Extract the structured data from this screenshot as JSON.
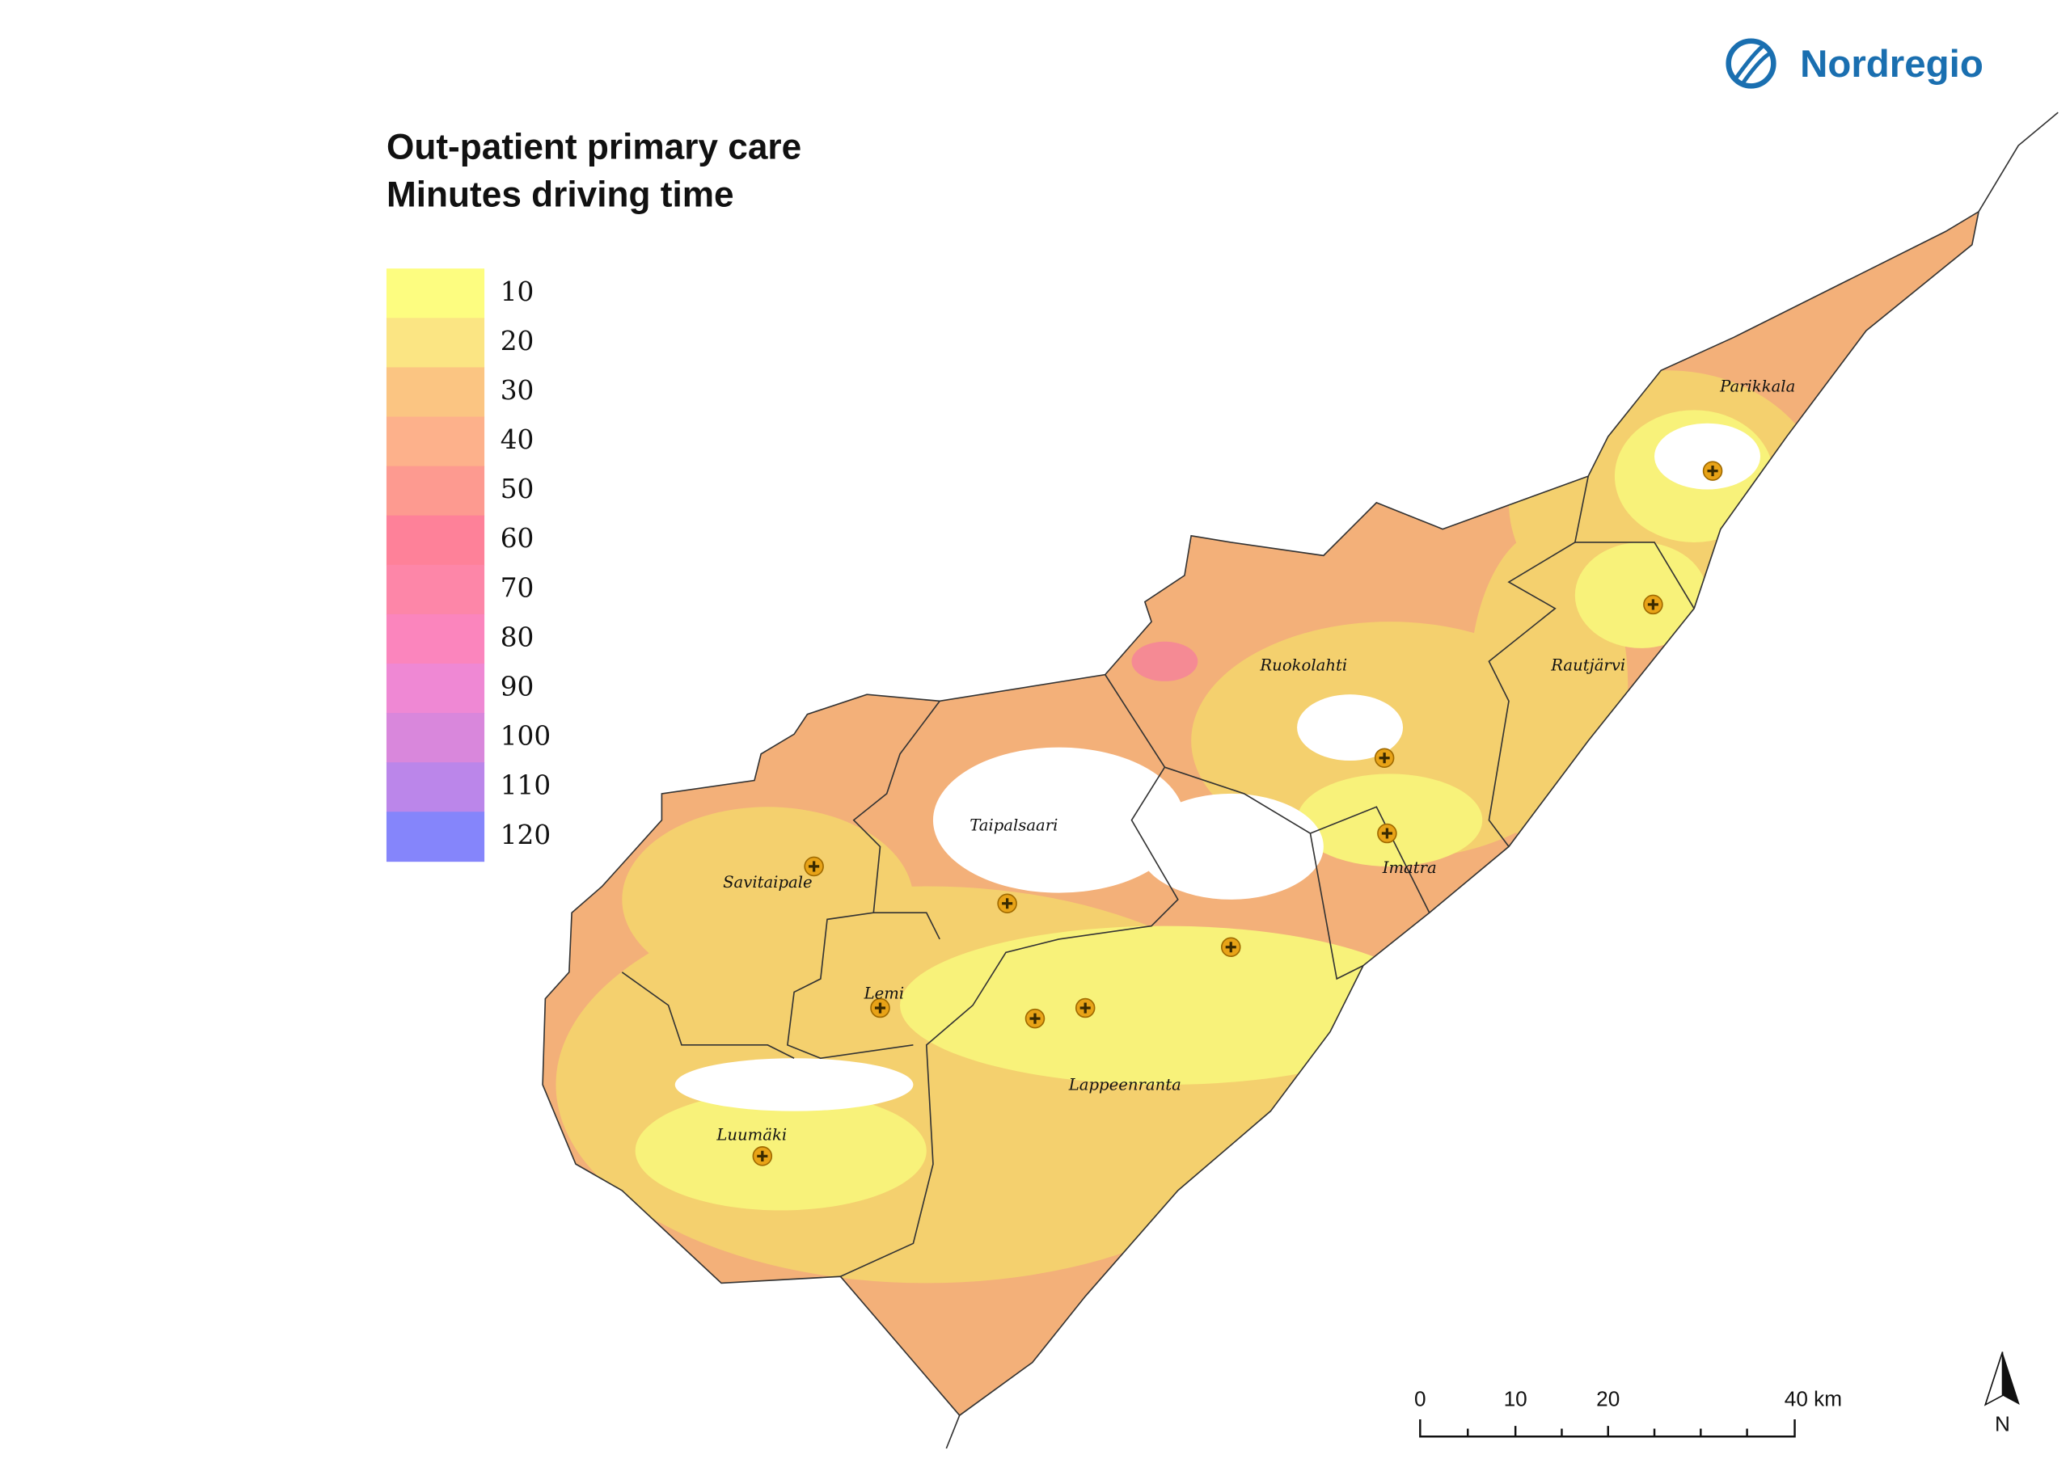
{
  "header": {
    "logo": "Nordregio",
    "title": [
      "Out-patient primary care",
      "Minutes driving time"
    ]
  },
  "legend": {
    "items": [
      {
        "label": 10,
        "color": "#fdfd80"
      },
      {
        "label": 20,
        "color": "#fbe583"
      },
      {
        "label": 30,
        "color": "#fbc582"
      },
      {
        "label": 40,
        "color": "#fdb18b"
      },
      {
        "label": 50,
        "color": "#fd9a90"
      },
      {
        "label": 60,
        "color": "#fe8199"
      },
      {
        "label": 70,
        "color": "#fd86a8"
      },
      {
        "label": 80,
        "color": "#fb85bd"
      },
      {
        "label": 90,
        "color": "#ef88d4"
      },
      {
        "label": 100,
        "color": "#d987dc"
      },
      {
        "label": 110,
        "color": "#bb86ea"
      },
      {
        "label": 120,
        "color": "#8585fb"
      }
    ]
  },
  "map": {
    "places": [
      "Parikkala",
      "Rautjärvi",
      "Ruokolahti",
      "Imatra",
      "Taipalsaari",
      "Savitaipale",
      "Lemi",
      "Lappeenranta",
      "Luumäki"
    ]
  },
  "scale_bar": {
    "labels": [
      "0",
      "10",
      "20",
      "40 km"
    ]
  },
  "north_arrow": "N"
}
